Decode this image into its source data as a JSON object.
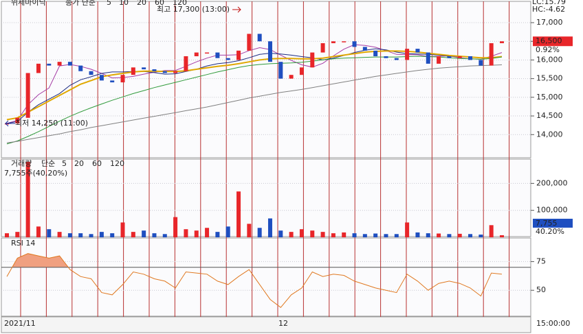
{
  "chart_data": [
    {
      "type": "candle",
      "instrument": "위세마이닉",
      "legend_prefix": "종가 단순",
      "values": [
        14300,
        14450,
        15650,
        15900,
        15850,
        15950,
        15850,
        15700,
        15600,
        15450,
        15400,
        15600,
        15800,
        15750,
        15700,
        15650,
        15700,
        16100,
        16200,
        16200,
        16050,
        16000,
        16250,
        16700,
        16500,
        15950,
        15500,
        15600,
        15800,
        16200,
        16450,
        16500,
        16500,
        16350,
        16250,
        16100,
        16050,
        16000,
        16300,
        16200,
        15900,
        16100,
        16050,
        16100,
        16000,
        15850,
        16450,
        16500
      ],
      "up_color": "#e8262a",
      "down_color": "#1f4fc0",
      "series": [
        {
          "name": "5",
          "color": "#a53ca5",
          "values": [
            14300,
            14380,
            14800,
            15070,
            15250,
            15840,
            15880,
            15830,
            15750,
            15640,
            15520,
            15530,
            15560,
            15620,
            15670,
            15720,
            15720,
            15830,
            15950,
            16050,
            16130,
            16130,
            16140,
            16250,
            16330,
            16280,
            16130,
            15990,
            15870,
            15810,
            15910,
            16110,
            16290,
            16410,
            16390,
            16340,
            16250,
            16150,
            16140,
            16140,
            16090,
            16100,
            16110,
            16060,
            16030,
            16020,
            16100,
            16200
          ]
        },
        {
          "name": "10",
          "color": "#1a2a80",
          "values": [
            14300,
            14350,
            14600,
            14800,
            14950,
            15100,
            15320,
            15470,
            15550,
            15640,
            15680,
            15680,
            15690,
            15690,
            15660,
            15620,
            15630,
            15690,
            15750,
            15840,
            15900,
            15930,
            15980,
            16060,
            16150,
            16180,
            16160,
            16130,
            16090,
            16060,
            16000,
            16050,
            16120,
            16200,
            16260,
            16300,
            16270,
            16210,
            16170,
            16160,
            16150,
            16130,
            16100,
            16090,
            16080,
            16060,
            16070,
            16090
          ]
        },
        {
          "name": "20",
          "color": "#e0a800",
          "values": [
            14400,
            14450,
            14600,
            14750,
            14900,
            15050,
            15200,
            15350,
            15450,
            15550,
            15600,
            15640,
            15680,
            15700,
            15700,
            15690,
            15690,
            15710,
            15750,
            15790,
            15830,
            15860,
            15900,
            15950,
            16000,
            16030,
            16040,
            16040,
            16030,
            16030,
            16050,
            16090,
            16130,
            16170,
            16210,
            16230,
            16240,
            16240,
            16230,
            16210,
            16180,
            16150,
            16120,
            16100,
            16080,
            16060,
            16060,
            16090
          ]
        },
        {
          "name": "60",
          "color": "#2f9a3a",
          "values": [
            13750,
            13830,
            13950,
            14080,
            14220,
            14360,
            14490,
            14610,
            14720,
            14820,
            14920,
            15010,
            15100,
            15180,
            15260,
            15330,
            15400,
            15470,
            15540,
            15610,
            15680,
            15740,
            15800,
            15850,
            15880,
            15900,
            15910,
            15920,
            15940,
            15970,
            16000,
            16030,
            16050,
            16060,
            16070,
            16080,
            16080,
            16080,
            16090,
            16100,
            16090,
            16080,
            16060,
            16040,
            16030,
            16020,
            16040,
            16080
          ]
        },
        {
          "name": "120",
          "color": "#808080",
          "values": [
            13780,
            13820,
            13870,
            13920,
            13970,
            14020,
            14080,
            14130,
            14190,
            14240,
            14290,
            14340,
            14390,
            14440,
            14490,
            14540,
            14590,
            14640,
            14690,
            14740,
            14800,
            14860,
            14920,
            14980,
            15030,
            15080,
            15130,
            15170,
            15210,
            15260,
            15310,
            15360,
            15410,
            15460,
            15510,
            15560,
            15600,
            15640,
            15680,
            15720,
            15750,
            15780,
            15800,
            15820,
            15840,
            15850,
            15860,
            15870
          ]
        }
      ],
      "ylim": [
        13380,
        17460
      ],
      "yticks": [
        {
          "value": 17000,
          "label": "17,000"
        },
        {
          "value": 16500,
          "label": "16,500"
        },
        {
          "value": 16000,
          "label": "16,000"
        },
        {
          "value": 15500,
          "label": "15,500"
        },
        {
          "value": 15000,
          "label": "15,000"
        },
        {
          "value": 14500,
          "label": "14,500"
        },
        {
          "value": 14000,
          "label": "14,000"
        }
      ],
      "grid": true,
      "high_annotation": "최고 17,300 (13:00)",
      "low_annotation": "최저 14,250 (11:00)",
      "lc": "LC:15.79",
      "hc": "HC:-4.62",
      "last_price": {
        "value": 16500,
        "label": "16,500"
      },
      "change_label": "0.92%"
    },
    {
      "type": "volume",
      "title": "거래량",
      "legend_prefix": "단순",
      "legend": [
        {
          "name": "5",
          "color": "#a53ca5"
        },
        {
          "name": "20",
          "color": "#e0a800"
        },
        {
          "name": "60",
          "color": "#2f9a3a"
        },
        {
          "name": "120",
          "color": "#808080"
        }
      ],
      "status": "7,755주(40,20%)",
      "values": [
        15000,
        20000,
        280000,
        40000,
        30000,
        20000,
        15000,
        15000,
        12000,
        20000,
        15000,
        55000,
        20000,
        25000,
        15000,
        12000,
        75000,
        30000,
        25000,
        35000,
        20000,
        40000,
        170000,
        50000,
        35000,
        70000,
        25000,
        20000,
        30000,
        25000,
        20000,
        15000,
        18000,
        15000,
        12000,
        14000,
        12000,
        12000,
        55000,
        18000,
        15000,
        14000,
        12000,
        13000,
        12000,
        10000,
        45000,
        7755
      ],
      "ylim": [
        0,
        290000
      ],
      "yticks": [
        {
          "value": 200000,
          "label": "200,000"
        },
        {
          "value": 100000,
          "label": "100,000"
        }
      ],
      "grid": true,
      "last_value": {
        "value": 7755,
        "label": "7,755"
      },
      "ratio_label": "40.20%"
    },
    {
      "type": "rsi",
      "title": "RSI 14",
      "color": "#e07820",
      "fill_color": "#f0a080",
      "overbought": 70,
      "values": [
        62,
        78,
        82,
        80,
        78,
        80,
        68,
        62,
        60,
        48,
        46,
        55,
        66,
        64,
        60,
        58,
        52,
        66,
        65,
        64,
        58,
        55,
        62,
        68,
        55,
        42,
        35,
        46,
        52,
        66,
        62,
        64,
        63,
        58,
        55,
        52,
        50,
        48,
        64,
        58,
        50,
        56,
        58,
        56,
        52,
        45,
        65,
        64
      ],
      "ylim": [
        28,
        95
      ],
      "yticks": [
        75,
        50
      ],
      "grid": true,
      "x_labels": [
        "2021/11",
        "12"
      ],
      "time_label": "15:00:00"
    }
  ]
}
